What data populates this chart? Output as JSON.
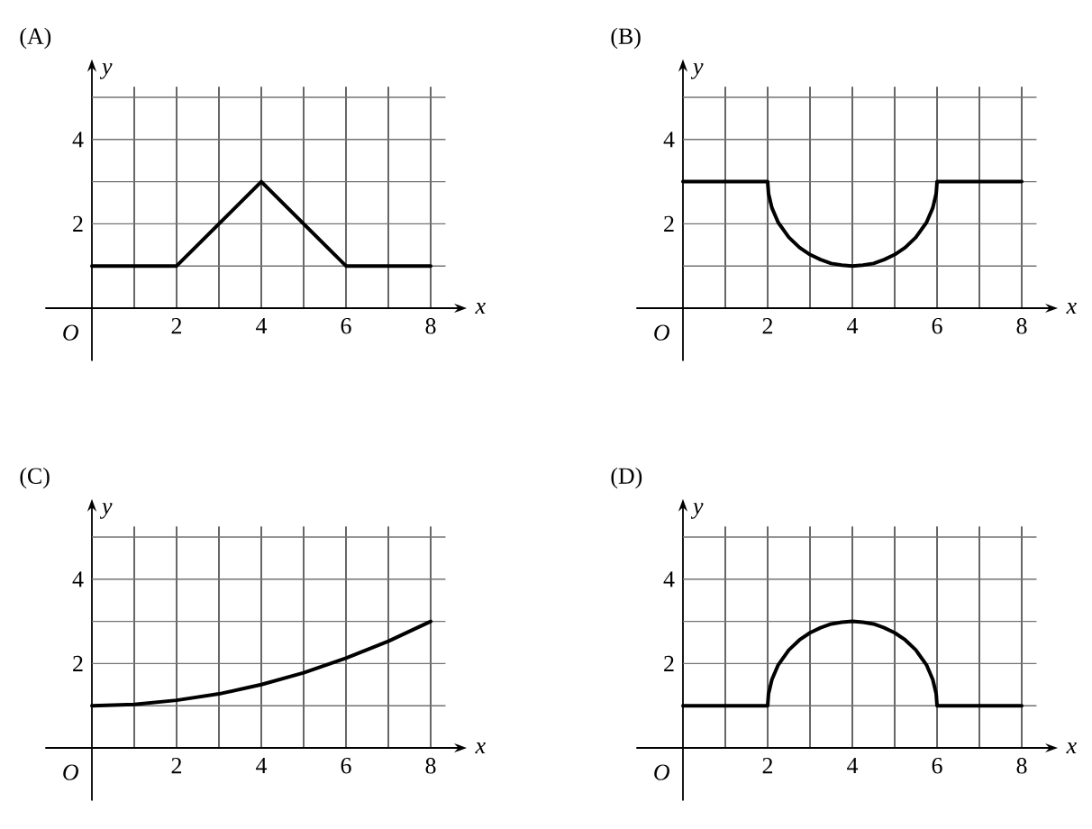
{
  "chart_data": [
    {
      "type": "line",
      "title": "(A)",
      "xlabel": "x",
      "ylabel": "y",
      "x": [
        0,
        2,
        4,
        6,
        8
      ],
      "values": [
        1,
        1,
        3,
        1,
        1
      ],
      "color": "#000000",
      "xlim": [
        -1.1,
        8.65
      ],
      "ylim": [
        -1.25,
        5.7
      ],
      "xticks": [
        {
          "value": 1,
          "label": null
        },
        2,
        {
          "value": 3,
          "label": null
        },
        4,
        {
          "value": 5,
          "label": null
        },
        6,
        {
          "value": 7,
          "label": null
        },
        8
      ],
      "yticks": [
        {
          "value": 1,
          "label": null
        },
        2,
        {
          "value": 3,
          "label": null
        },
        4,
        {
          "value": 5,
          "label": null
        }
      ],
      "grid": true,
      "annotations": [
        "O"
      ]
    },
    {
      "type": "line",
      "title": "(B)",
      "xlabel": "x",
      "ylabel": "y",
      "x": [
        0,
        2,
        2.02,
        2.1,
        2.25,
        2.5,
        2.75,
        3,
        3.25,
        3.5,
        3.75,
        4,
        4.25,
        4.5,
        4.75,
        5,
        5.25,
        5.5,
        5.75,
        5.9,
        5.98,
        6,
        8
      ],
      "values": [
        3,
        3,
        2.72,
        2.38,
        2.03,
        1.68,
        1.44,
        1.27,
        1.15,
        1.06,
        1.02,
        1,
        1.02,
        1.06,
        1.15,
        1.27,
        1.44,
        1.68,
        2.03,
        2.38,
        2.72,
        3,
        3
      ],
      "color": "#000000",
      "xlim": [
        -1.1,
        8.65
      ],
      "ylim": [
        -1.25,
        5.7
      ],
      "xticks": [
        {
          "value": 1,
          "label": null
        },
        2,
        {
          "value": 3,
          "label": null
        },
        4,
        {
          "value": 5,
          "label": null
        },
        6,
        {
          "value": 7,
          "label": null
        },
        8
      ],
      "yticks": [
        {
          "value": 1,
          "label": null
        },
        2,
        {
          "value": 3,
          "label": null
        },
        4,
        {
          "value": 5,
          "label": null
        }
      ],
      "grid": true,
      "annotations": [
        "O"
      ]
    },
    {
      "type": "line",
      "title": "(C)",
      "xlabel": "x",
      "ylabel": "y",
      "x": [
        0,
        1,
        2,
        3,
        4,
        5,
        6,
        7,
        8
      ],
      "values": [
        1,
        1.03,
        1.13,
        1.28,
        1.5,
        1.78,
        2.13,
        2.53,
        3
      ],
      "color": "#000000",
      "xlim": [
        -1.1,
        8.65
      ],
      "ylim": [
        -1.25,
        5.7
      ],
      "xticks": [
        {
          "value": 1,
          "label": null
        },
        2,
        {
          "value": 3,
          "label": null
        },
        4,
        {
          "value": 5,
          "label": null
        },
        6,
        {
          "value": 7,
          "label": null
        },
        8
      ],
      "yticks": [
        {
          "value": 1,
          "label": null
        },
        2,
        {
          "value": 3,
          "label": null
        },
        4,
        {
          "value": 5,
          "label": null
        }
      ],
      "grid": true,
      "annotations": [
        "O"
      ]
    },
    {
      "type": "line",
      "title": "(D)",
      "xlabel": "x",
      "ylabel": "y",
      "x": [
        0,
        2,
        2.02,
        2.1,
        2.25,
        2.5,
        2.75,
        3,
        3.25,
        3.5,
        3.75,
        4,
        4.25,
        4.5,
        4.75,
        5,
        5.25,
        5.5,
        5.75,
        5.9,
        5.98,
        6,
        8
      ],
      "values": [
        1,
        1,
        1.28,
        1.62,
        1.97,
        2.32,
        2.56,
        2.73,
        2.85,
        2.94,
        2.98,
        3,
        2.98,
        2.94,
        2.85,
        2.73,
        2.56,
        2.32,
        1.97,
        1.62,
        1.28,
        1,
        1
      ],
      "color": "#000000",
      "xlim": [
        -1.1,
        8.65
      ],
      "ylim": [
        -1.25,
        5.7
      ],
      "xticks": [
        {
          "value": 1,
          "label": null
        },
        2,
        {
          "value": 3,
          "label": null
        },
        4,
        {
          "value": 5,
          "label": null
        },
        6,
        {
          "value": 7,
          "label": null
        },
        8
      ],
      "yticks": [
        {
          "value": 1,
          "label": null
        },
        2,
        {
          "value": 3,
          "label": null
        },
        4,
        {
          "value": 5,
          "label": null
        }
      ],
      "grid": true,
      "annotations": [
        "O"
      ]
    }
  ]
}
